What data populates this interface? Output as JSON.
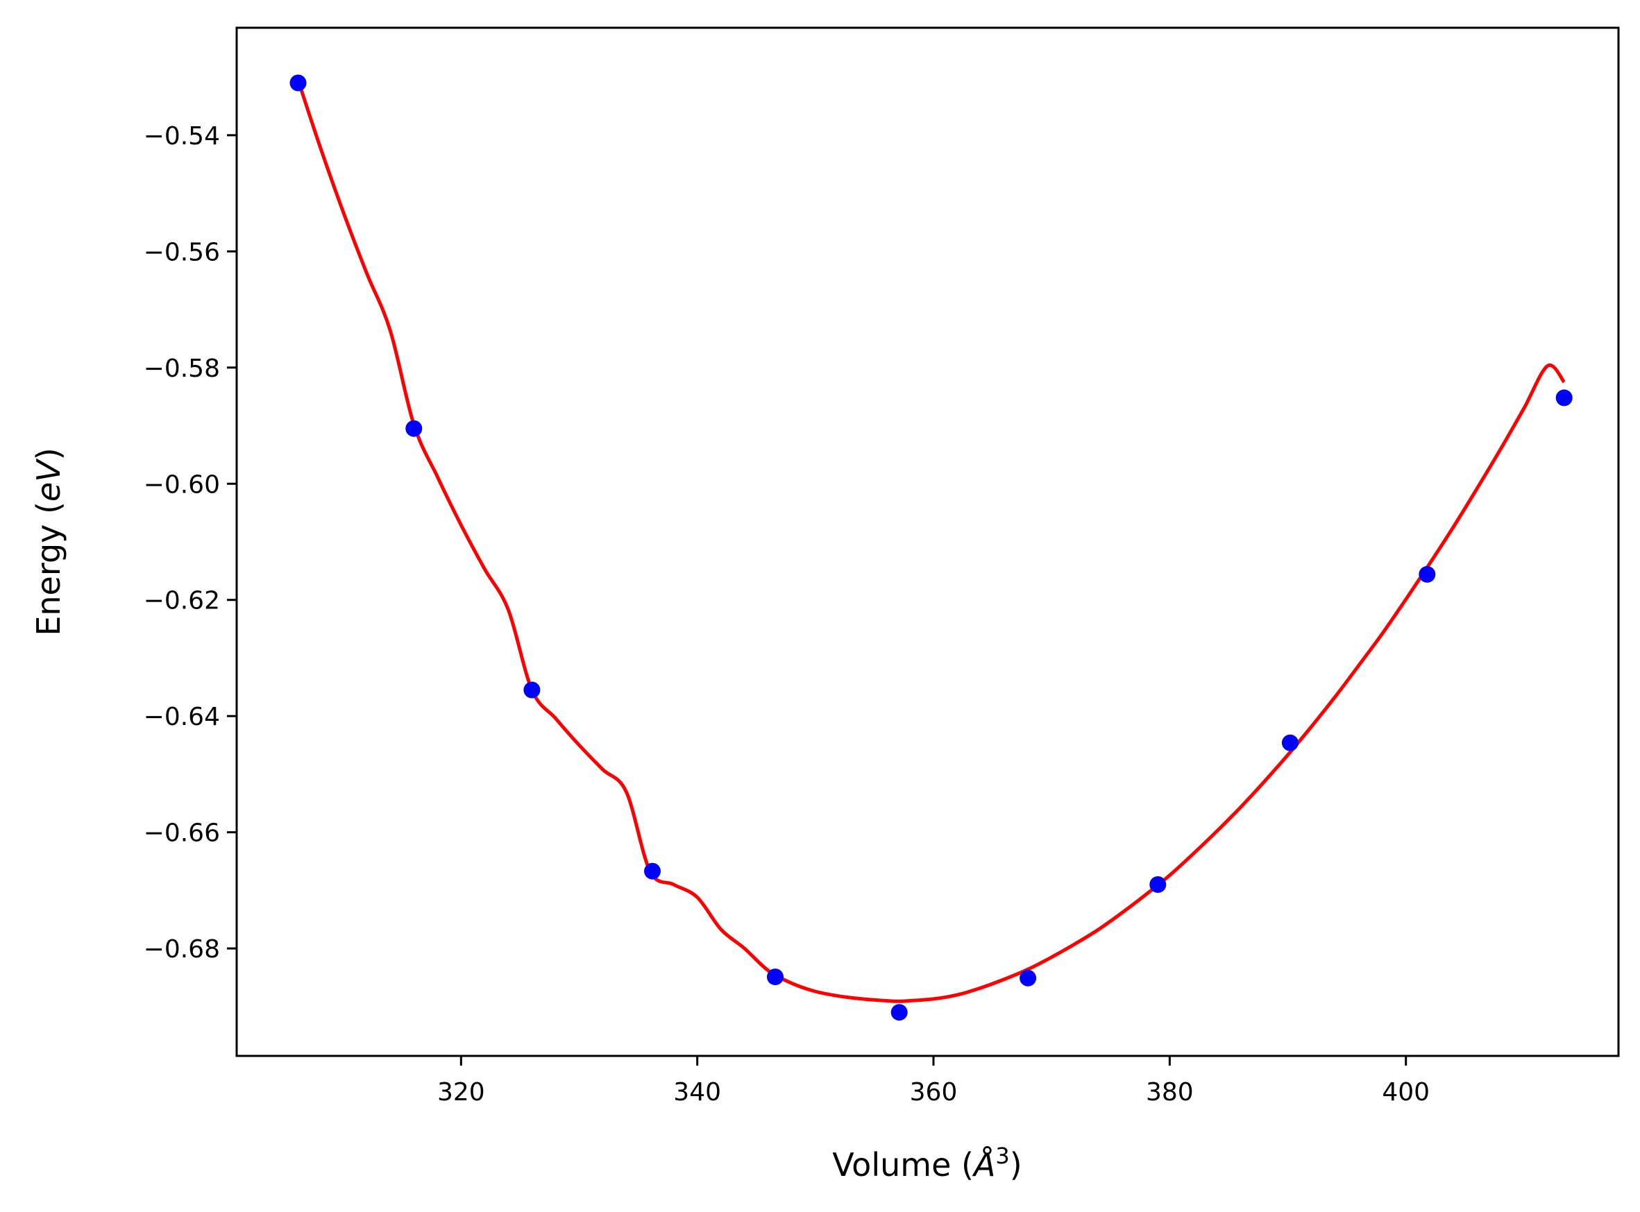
{
  "chart_data": {
    "type": "scatter",
    "title": "",
    "xlabel": {
      "prefix": "Volume (",
      "symbol": "Å",
      "superscript": "3",
      "suffix": ")"
    },
    "ylabel": {
      "prefix": "Energy (",
      "symbol": "eV",
      "suffix": ")"
    },
    "xlim": [
      301,
      418
    ],
    "ylim": [
      -0.6985,
      -0.5215
    ],
    "xticks": [
      320,
      340,
      360,
      380,
      400
    ],
    "yticks": [
      -0.54,
      -0.56,
      -0.58,
      -0.6,
      -0.62,
      -0.64,
      -0.66,
      -0.68
    ],
    "xtick_labels": [
      "320",
      "340",
      "360",
      "380",
      "400"
    ],
    "ytick_labels": [
      "−0.54",
      "−0.56",
      "−0.58",
      "−0.60",
      "−0.62",
      "−0.64",
      "−0.66",
      "−0.68"
    ],
    "grid": false,
    "legend": "none",
    "series": [
      {
        "kind": "points",
        "color": "#0000ff",
        "x": [
          306.2,
          316.0,
          326.0,
          336.2,
          346.6,
          357.1,
          368.0,
          379.0,
          390.2,
          401.8,
          413.4
        ],
        "y": [
          -0.531,
          -0.5905,
          -0.6355,
          -0.6667,
          -0.6849,
          -0.691,
          -0.6851,
          -0.669,
          -0.6446,
          -0.6156,
          -0.5852
        ]
      },
      {
        "kind": "fit-curve",
        "color": "#ff0000",
        "x": [
          306.2,
          308.0,
          310.0,
          312.0,
          314.0,
          316.0,
          318.0,
          320.0,
          322.0,
          324.0,
          326.0,
          328.0,
          330.0,
          332.0,
          334.0,
          336.0,
          338.0,
          340.0,
          342.0,
          344.0,
          346.0,
          348.0,
          350.0,
          352.0,
          354.0,
          356.0,
          357.0,
          358.0,
          360.0,
          362.0,
          364.0,
          366.0,
          368.0,
          370.0,
          372.0,
          374.0,
          376.0,
          378.0,
          380.0,
          382.0,
          384.0,
          386.0,
          388.0,
          390.0,
          392.0,
          394.0,
          396.0,
          398.0,
          400.0,
          402.0,
          404.0,
          406.0,
          408.0,
          410.0,
          412.0,
          413.4
        ],
        "y": [
          -0.5305,
          -0.5416,
          -0.5531,
          -0.5637,
          -0.5736,
          -0.5898,
          -0.5988,
          -0.6071,
          -0.6147,
          -0.6217,
          -0.6355,
          -0.6404,
          -0.645,
          -0.6492,
          -0.6531,
          -0.6667,
          -0.669,
          -0.6712,
          -0.6767,
          -0.68,
          -0.6838,
          -0.686,
          -0.6874,
          -0.6882,
          -0.6887,
          -0.689,
          -0.6891,
          -0.689,
          -0.6887,
          -0.688,
          -0.6868,
          -0.6853,
          -0.6836,
          -0.6815,
          -0.6792,
          -0.6767,
          -0.6738,
          -0.6707,
          -0.6674,
          -0.6637,
          -0.6598,
          -0.6557,
          -0.6513,
          -0.6467,
          -0.6418,
          -0.6367,
          -0.6313,
          -0.6258,
          -0.6199,
          -0.6138,
          -0.6075,
          -0.6009,
          -0.5941,
          -0.587,
          -0.5797,
          -0.5825
        ]
      }
    ]
  }
}
